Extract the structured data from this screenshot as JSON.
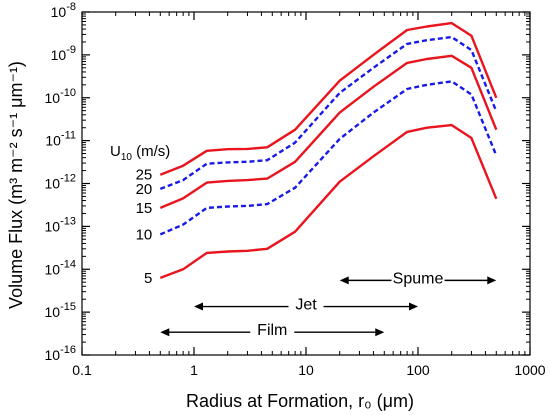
{
  "chart_data": {
    "type": "line",
    "xscale": "log",
    "yscale": "log",
    "xlim": [
      0.1,
      1000
    ],
    "ylim": [
      1e-16,
      1e-08
    ],
    "grid": false,
    "xlabel": "Radius at Formation, r₀ (μm)",
    "ylabel": "Volume Flux (m³ m⁻² s⁻¹ μm⁻¹)",
    "x_tick_labels": [
      "0.1",
      "1",
      "10",
      "100",
      "1000"
    ],
    "y_tick_labels": [
      {
        "base": "10",
        "exp": "-16"
      },
      {
        "base": "10",
        "exp": "-15"
      },
      {
        "base": "10",
        "exp": "-14"
      },
      {
        "base": "10",
        "exp": "-13"
      },
      {
        "base": "10",
        "exp": "-12"
      },
      {
        "base": "10",
        "exp": "-11"
      },
      {
        "base": "10",
        "exp": "-10"
      },
      {
        "base": "10",
        "exp": "-9"
      },
      {
        "base": "10",
        "exp": "-8"
      }
    ],
    "legend_title": {
      "main": "U",
      "sub": "10",
      "unit": " (m/s)"
    },
    "series": [
      {
        "name": "25",
        "color": "#e8141e",
        "dash": "solid",
        "points": [
          [
            0.5,
            1.6e-12
          ],
          [
            0.8,
            2.6e-12
          ],
          [
            1.3,
            5.8e-12
          ],
          [
            2,
            6.3e-12
          ],
          [
            3,
            6.4e-12
          ],
          [
            4.5,
            7e-12
          ],
          [
            8,
            1.8e-11
          ],
          [
            20,
            2.5e-10
          ],
          [
            40,
            1e-09
          ],
          [
            80,
            3.8e-09
          ],
          [
            120,
            4.6e-09
          ],
          [
            200,
            5.5e-09
          ],
          [
            300,
            2.8e-09
          ],
          [
            500,
            1e-10
          ]
        ]
      },
      {
        "name": "20",
        "color": "#1a1ae6",
        "dash": "dashed",
        "points": [
          [
            0.5,
            7.5e-13
          ],
          [
            0.8,
            1.2e-12
          ],
          [
            1.3,
            2.9e-12
          ],
          [
            2,
            3.1e-12
          ],
          [
            3,
            3.2e-12
          ],
          [
            4.5,
            3.5e-12
          ],
          [
            8,
            9e-12
          ],
          [
            20,
            1.3e-10
          ],
          [
            40,
            5e-10
          ],
          [
            80,
            1.8e-09
          ],
          [
            120,
            2.2e-09
          ],
          [
            200,
            2.6e-09
          ],
          [
            300,
            1.3e-09
          ],
          [
            500,
            4.8e-11
          ]
        ]
      },
      {
        "name": "15",
        "color": "#e8141e",
        "dash": "solid",
        "points": [
          [
            0.5,
            2.7e-13
          ],
          [
            0.8,
            4.5e-13
          ],
          [
            1.3,
            1.05e-12
          ],
          [
            2,
            1.15e-12
          ],
          [
            3,
            1.2e-12
          ],
          [
            4.5,
            1.3e-12
          ],
          [
            8,
            3.2e-12
          ],
          [
            20,
            4.5e-11
          ],
          [
            40,
            1.8e-10
          ],
          [
            80,
            6.5e-10
          ],
          [
            120,
            8e-10
          ],
          [
            200,
            9.5e-10
          ],
          [
            300,
            5e-10
          ],
          [
            500,
            1.8e-11
          ]
        ]
      },
      {
        "name": "10",
        "color": "#1a1ae6",
        "dash": "dashed",
        "points": [
          [
            0.5,
            6.5e-14
          ],
          [
            0.8,
            1.1e-13
          ],
          [
            1.3,
            2.7e-13
          ],
          [
            2,
            2.9e-13
          ],
          [
            3,
            3e-13
          ],
          [
            4.5,
            3.3e-13
          ],
          [
            8,
            8e-13
          ],
          [
            20,
            1.1e-11
          ],
          [
            40,
            4.5e-11
          ],
          [
            80,
            1.6e-10
          ],
          [
            120,
            2e-10
          ],
          [
            200,
            2.4e-10
          ],
          [
            300,
            1.2e-10
          ],
          [
            500,
            4.5e-12
          ]
        ]
      },
      {
        "name": "5",
        "color": "#e8141e",
        "dash": "solid",
        "points": [
          [
            0.5,
            6.3e-15
          ],
          [
            0.8,
            1e-14
          ],
          [
            1.3,
            2.4e-14
          ],
          [
            2,
            2.6e-14
          ],
          [
            3,
            2.7e-14
          ],
          [
            4.5,
            3e-14
          ],
          [
            8,
            7.5e-14
          ],
          [
            20,
            1.1e-12
          ],
          [
            40,
            4.3e-12
          ],
          [
            80,
            1.6e-11
          ],
          [
            120,
            2e-11
          ],
          [
            200,
            2.3e-11
          ],
          [
            300,
            1.15e-11
          ],
          [
            500,
            4.4e-13
          ]
        ]
      }
    ],
    "ranges": [
      {
        "label": "Spume",
        "x_from": 20,
        "x_to": 500,
        "y": 5.5e-15
      },
      {
        "label": "Jet",
        "x_from": 1,
        "x_to": 100,
        "y": 1.35e-15
      },
      {
        "label": "Film",
        "x_from": 0.5,
        "x_to": 50,
        "y": 3.4e-16
      }
    ]
  }
}
